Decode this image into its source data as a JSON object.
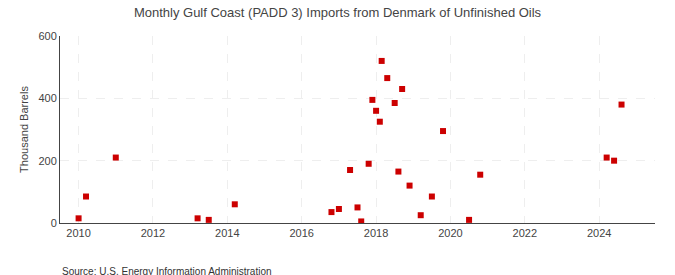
{
  "chart_data": {
    "type": "scatter",
    "title": "Monthly Gulf Coast (PADD 3) Imports from Denmark of Unfinished Oils",
    "ylabel": "Thousand Barrels",
    "source": "Source: U.S. Energy Information Administration",
    "color": "#cc0000",
    "marker": "square",
    "x": [
      2010.0,
      2010.2,
      2011.0,
      2013.2,
      2013.5,
      2014.2,
      2016.8,
      2017.0,
      2017.3,
      2017.5,
      2017.6,
      2017.8,
      2017.9,
      2018.0,
      2018.1,
      2018.15,
      2018.3,
      2018.5,
      2018.6,
      2018.7,
      2018.9,
      2019.2,
      2019.5,
      2019.8,
      2020.5,
      2020.8,
      2024.2,
      2024.4,
      2024.6
    ],
    "values": [
      15,
      85,
      210,
      15,
      10,
      60,
      35,
      45,
      170,
      50,
      5,
      190,
      395,
      360,
      325,
      520,
      465,
      385,
      165,
      430,
      120,
      25,
      85,
      295,
      10,
      155,
      210,
      200,
      380
    ],
    "xlim": [
      2009.5,
      2025.5
    ],
    "ylim": [
      0,
      600
    ],
    "xticks": [
      2010,
      2012,
      2014,
      2016,
      2018,
      2020,
      2022,
      2024
    ],
    "yticks": [
      0,
      200,
      400,
      600
    ],
    "grid": true
  }
}
